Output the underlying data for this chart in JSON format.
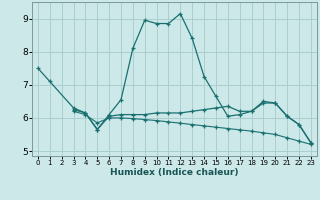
{
  "xlabel": "Humidex (Indice chaleur)",
  "background_color": "#cce8e8",
  "grid_color": "#aacfcf",
  "line_color": "#1a7070",
  "xlim": [
    -0.5,
    23.5
  ],
  "ylim": [
    4.85,
    9.5
  ],
  "xticks": [
    0,
    1,
    2,
    3,
    4,
    5,
    6,
    7,
    8,
    9,
    10,
    11,
    12,
    13,
    14,
    15,
    16,
    17,
    18,
    19,
    20,
    21,
    22,
    23
  ],
  "yticks": [
    5,
    6,
    7,
    8,
    9
  ],
  "line1_x": [
    0,
    1,
    3,
    4,
    5,
    6,
    7,
    8,
    9,
    10,
    11,
    12,
    13,
    14,
    15,
    16,
    17,
    18,
    19,
    20,
    21,
    22,
    23
  ],
  "line1_y": [
    7.5,
    7.1,
    6.3,
    6.15,
    5.65,
    6.1,
    6.55,
    8.1,
    8.95,
    8.85,
    8.85,
    9.15,
    8.4,
    7.25,
    6.65,
    6.05,
    6.1,
    6.2,
    6.45,
    6.45,
    6.05,
    5.8,
    5.25
  ],
  "line2_x": [
    3,
    4,
    5,
    6,
    7,
    8,
    9,
    10,
    11,
    12,
    13,
    14,
    15,
    16,
    17,
    18,
    19,
    20,
    21,
    22,
    23
  ],
  "line2_y": [
    6.25,
    6.15,
    5.65,
    6.05,
    6.1,
    6.1,
    6.1,
    6.15,
    6.15,
    6.15,
    6.2,
    6.25,
    6.3,
    6.35,
    6.2,
    6.2,
    6.5,
    6.45,
    6.05,
    5.8,
    5.25
  ],
  "line3_x": [
    3,
    4,
    5,
    6,
    7,
    8,
    9,
    10,
    11,
    12,
    13,
    14,
    15,
    16,
    17,
    18,
    19,
    20,
    21,
    22,
    23
  ],
  "line3_y": [
    6.2,
    6.1,
    5.85,
    6.0,
    6.0,
    5.98,
    5.95,
    5.92,
    5.88,
    5.84,
    5.8,
    5.76,
    5.72,
    5.68,
    5.64,
    5.6,
    5.55,
    5.5,
    5.4,
    5.3,
    5.2
  ]
}
